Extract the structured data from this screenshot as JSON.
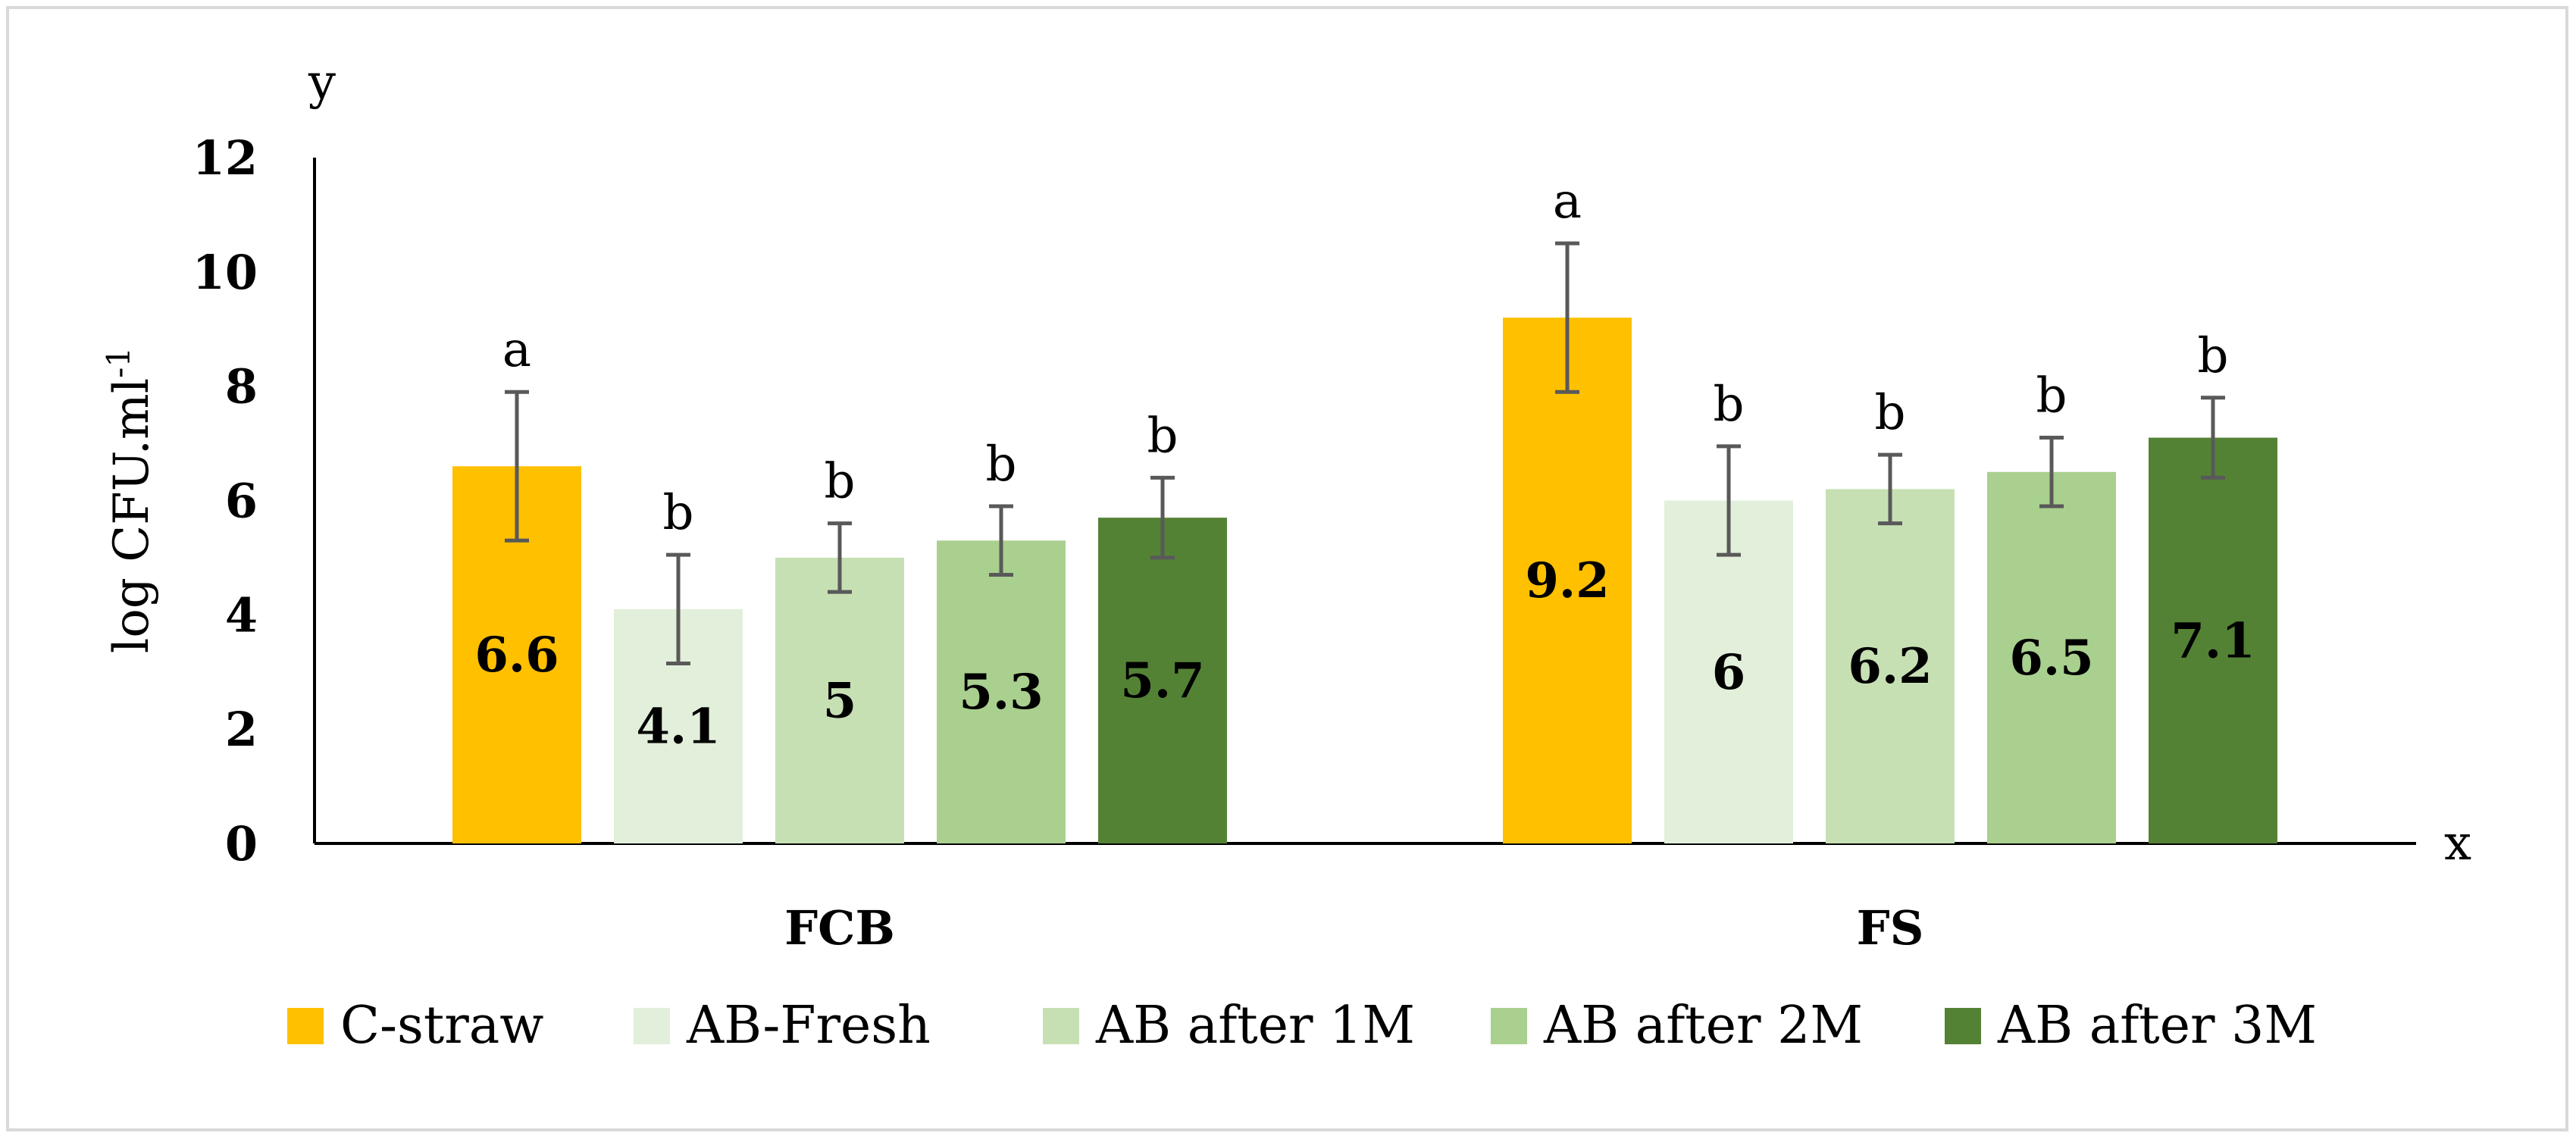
{
  "chart_data": {
    "type": "bar",
    "ylabel_main": "log CFU.ml",
    "ylabel_sup": "-1",
    "y_axis_symbol": "y",
    "x_axis_symbol": "x",
    "ylim": [
      0,
      12
    ],
    "yticks": [
      0,
      2,
      4,
      6,
      8,
      10,
      12
    ],
    "categories": [
      "FCB",
      "FS"
    ],
    "series": [
      {
        "name": "C-straw",
        "color": "#FFC000",
        "values": [
          6.6,
          9.2
        ],
        "errors": [
          1.3,
          1.3
        ],
        "letters": [
          "a",
          "a"
        ]
      },
      {
        "name": "AB-Fresh",
        "color": "#E2EFDA",
        "values": [
          4.1,
          6.0
        ],
        "errors": [
          0.95,
          0.95
        ],
        "letters": [
          "b",
          "b"
        ]
      },
      {
        "name": "AB after 1M",
        "color": "#C6E0B4",
        "values": [
          5.0,
          6.2
        ],
        "errors": [
          0.6,
          0.6
        ],
        "letters": [
          "b",
          "b"
        ]
      },
      {
        "name": "AB after 2M",
        "color": "#A9D08E",
        "values": [
          5.3,
          6.5
        ],
        "errors": [
          0.6,
          0.6
        ],
        "letters": [
          "b",
          "b"
        ]
      },
      {
        "name": "AB after 3M",
        "color": "#548235",
        "values": [
          5.7,
          7.1
        ],
        "errors": [
          0.7,
          0.7
        ],
        "letters": [
          "b",
          "b"
        ]
      }
    ],
    "value_labels": [
      [
        "6.6",
        "9.2"
      ],
      [
        "4.1",
        "6"
      ],
      [
        "5",
        "6.2"
      ],
      [
        "5.3",
        "6.5"
      ],
      [
        "5.7",
        "7.1"
      ]
    ],
    "legend_position": "bottom"
  }
}
